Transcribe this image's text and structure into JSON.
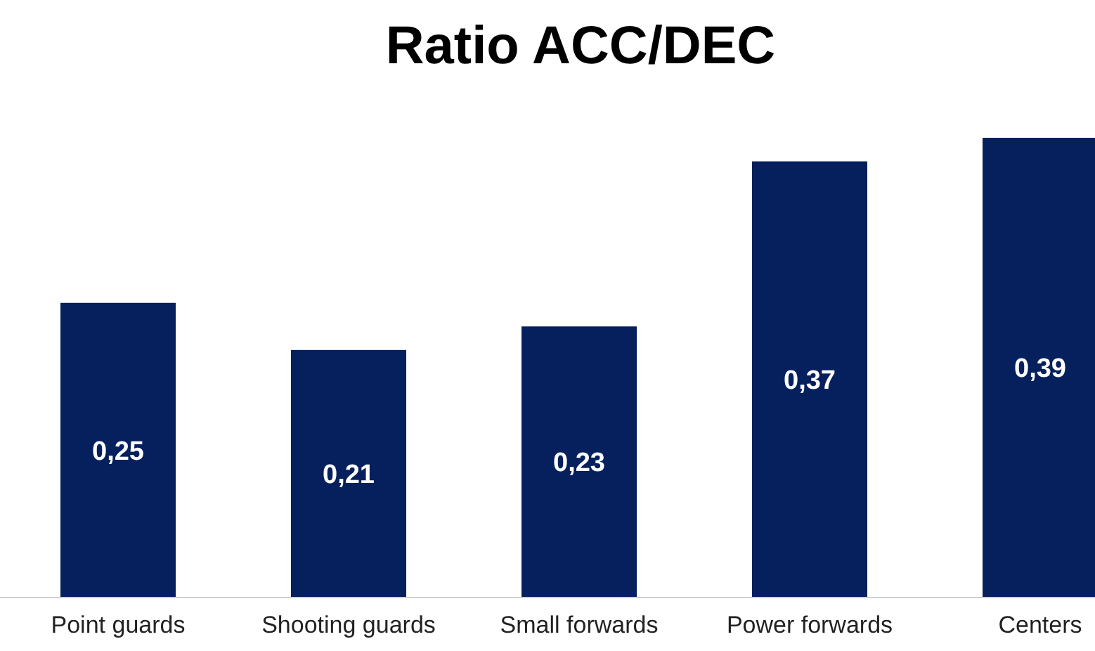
{
  "chart_data": {
    "type": "bar",
    "title": "Ratio ACC/DEC",
    "categories": [
      "Point guards",
      "Shooting guards",
      "Small forwards",
      "Power forwards",
      "Centers"
    ],
    "values": [
      0.25,
      0.21,
      0.23,
      0.37,
      0.39
    ],
    "value_labels": [
      "0,25",
      "0,21",
      "0,23",
      "0,37",
      "0,39"
    ],
    "color": "#06205e"
  }
}
